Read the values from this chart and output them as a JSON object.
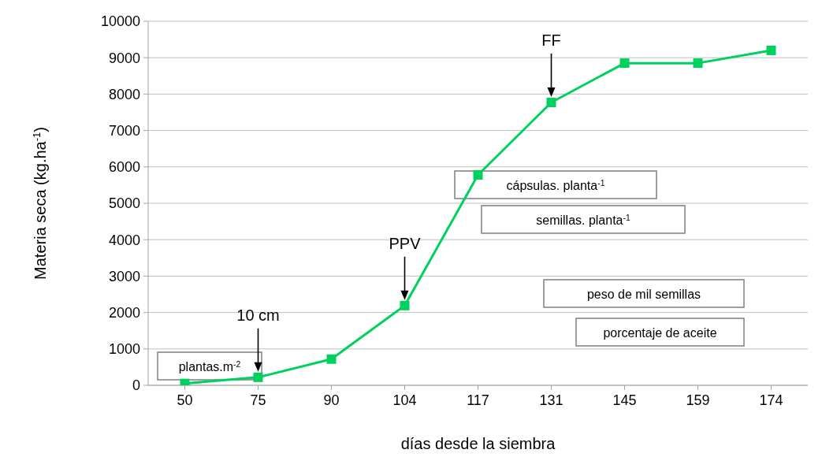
{
  "chart_data": {
    "type": "line",
    "xlabel": "días desde la siembra",
    "ylabel": "Materia seca (kg.ha$^{-1}$)",
    "categories": [
      "50",
      "75",
      "90",
      "104",
      "117",
      "131",
      "145",
      "159",
      "174"
    ],
    "series": [
      {
        "color": "#00d15e",
        "values": [
          50,
          220,
          720,
          2190,
          5780,
          7770,
          8850,
          8850,
          9200
        ]
      }
    ],
    "ylim": [
      0,
      10000
    ],
    "yticks": [
      0,
      1000,
      2000,
      3000,
      4000,
      5000,
      6000,
      7000,
      8000,
      9000,
      10000
    ],
    "grid": "y",
    "marker": "square",
    "line_style": "solid",
    "annotations": [
      "10 cm",
      "PPV",
      "FF",
      "plantas.m$^{-2}$",
      "cápsulas. planta$^{-1}$",
      "semillas. planta$^{-1}$",
      "peso de mil semillas",
      "porcentaje de aceite"
    ]
  }
}
